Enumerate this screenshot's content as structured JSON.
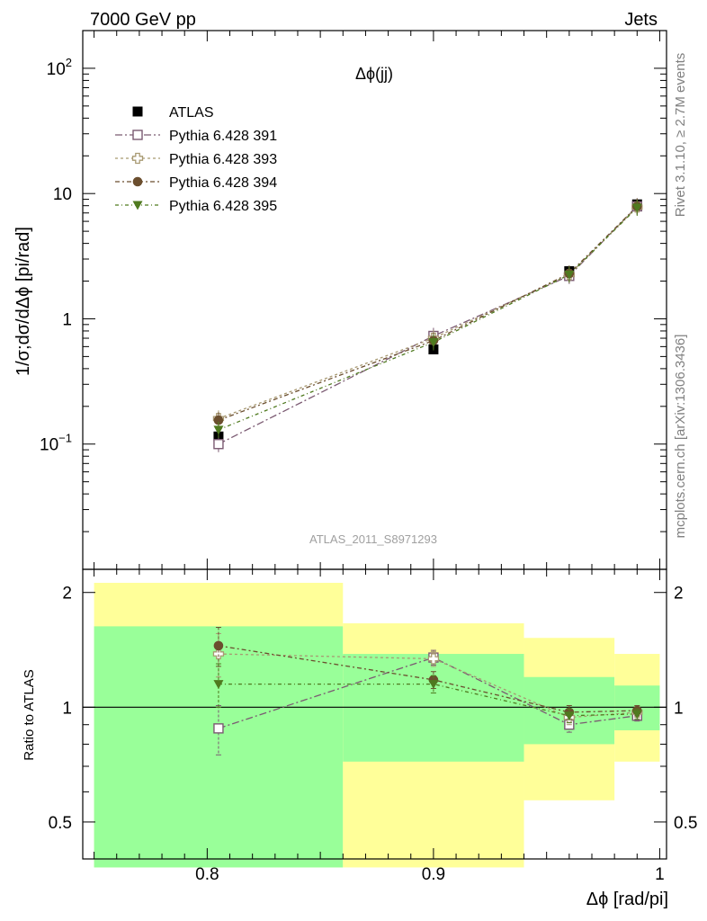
{
  "header": {
    "left_label": "7000 GeV pp",
    "right_label": "Jets"
  },
  "side_labels": {
    "upper": "Rivet 3.1.10, ≥ 2.7M events",
    "lower": "mcplots.cern.ch [arXiv:1306.3436]"
  },
  "chart_data": [
    {
      "type": "scatter",
      "panel": "main",
      "title": "Δϕ(jj)",
      "ylabel": "1/σ;dσ/dΔϕ [pi/rad]",
      "yscale": "log",
      "ylim": [
        0.01,
        200
      ],
      "xlim": [
        0.745,
        1.003
      ],
      "watermark": "ATLAS_2011_S8971293",
      "y_ticks": [
        {
          "value": 100,
          "base": "10",
          "exp": "2"
        },
        {
          "value": 10,
          "label": "10"
        },
        {
          "value": 1,
          "label": "1"
        },
        {
          "value": 0.1,
          "base": "10",
          "exp": "−1"
        }
      ],
      "legend_position": "top-left",
      "x": [
        0.805,
        0.9,
        0.96,
        0.99
      ],
      "series": [
        {
          "name": "ATLAS",
          "values": [
            0.115,
            0.57,
            2.4,
            8.2
          ],
          "color": "#000000",
          "marker": "filled-square"
        },
        {
          "name": "Pythia 6.428 391",
          "values": [
            0.1,
            0.73,
            2.2,
            7.9
          ],
          "color": "#7b5a72",
          "marker": "open-square",
          "dash": "8 3 2 3"
        },
        {
          "name": "Pythia 6.428 393",
          "values": [
            0.16,
            0.7,
            2.25,
            7.8
          ],
          "color": "#a89a72",
          "marker": "open-cross",
          "dash": "3 3"
        },
        {
          "name": "Pythia 6.428 394",
          "values": [
            0.155,
            0.67,
            2.3,
            7.9
          ],
          "color": "#6b4e2e",
          "marker": "filled-circle",
          "dash": "5 3 2 3"
        },
        {
          "name": "Pythia 6.428 395",
          "values": [
            0.13,
            0.65,
            2.25,
            7.7
          ],
          "color": "#4f7a1f",
          "marker": "filled-triangle-down",
          "dash": "4 3 1 3"
        }
      ]
    },
    {
      "type": "scatter",
      "panel": "ratio",
      "ylabel": "Ratio to ATLAS",
      "xlabel": "Δϕ [rad/pi]",
      "yscale": "log",
      "ylim": [
        0.4,
        2.3
      ],
      "x_ticks": [
        "0.8",
        "0.9",
        "1"
      ],
      "x_tick_values": [
        0.8,
        0.9,
        1.0
      ],
      "y_ticks": [
        "2",
        "1",
        "0.5"
      ],
      "y_tick_values": [
        2,
        1,
        0.5
      ],
      "bands": [
        {
          "x0": 0.75,
          "x1": 0.86,
          "inner": [
            0.38,
            1.63
          ],
          "outer": [
            0.38,
            2.12
          ]
        },
        {
          "x0": 0.86,
          "x1": 0.94,
          "inner": [
            0.72,
            1.38
          ],
          "outer": [
            0.38,
            1.66
          ]
        },
        {
          "x0": 0.94,
          "x1": 0.98,
          "inner": [
            0.8,
            1.2
          ],
          "outer": [
            0.57,
            1.52
          ]
        },
        {
          "x0": 0.98,
          "x1": 1.0,
          "inner": [
            0.87,
            1.14
          ],
          "outer": [
            0.72,
            1.38
          ]
        }
      ],
      "band_colors": {
        "inner": "#99ff99",
        "outer": "#ffff99"
      },
      "x": [
        0.805,
        0.9,
        0.96,
        0.99
      ],
      "series": [
        {
          "name": "Pythia 6.428 391",
          "values": [
            0.88,
            1.35,
            0.9,
            0.95
          ],
          "err": [
            0.13,
            0.06,
            0.04,
            0.03
          ]
        },
        {
          "name": "Pythia 6.428 393",
          "values": [
            1.38,
            1.34,
            0.94,
            0.97
          ],
          "err": [
            0.18,
            0.06,
            0.04,
            0.03
          ]
        },
        {
          "name": "Pythia 6.428 394",
          "values": [
            1.45,
            1.18,
            0.97,
            0.98
          ],
          "err": [
            0.17,
            0.06,
            0.04,
            0.03
          ]
        },
        {
          "name": "Pythia 6.428 395",
          "values": [
            1.15,
            1.15,
            0.95,
            0.96
          ],
          "err": [
            0.15,
            0.06,
            0.04,
            0.03
          ]
        }
      ]
    }
  ]
}
